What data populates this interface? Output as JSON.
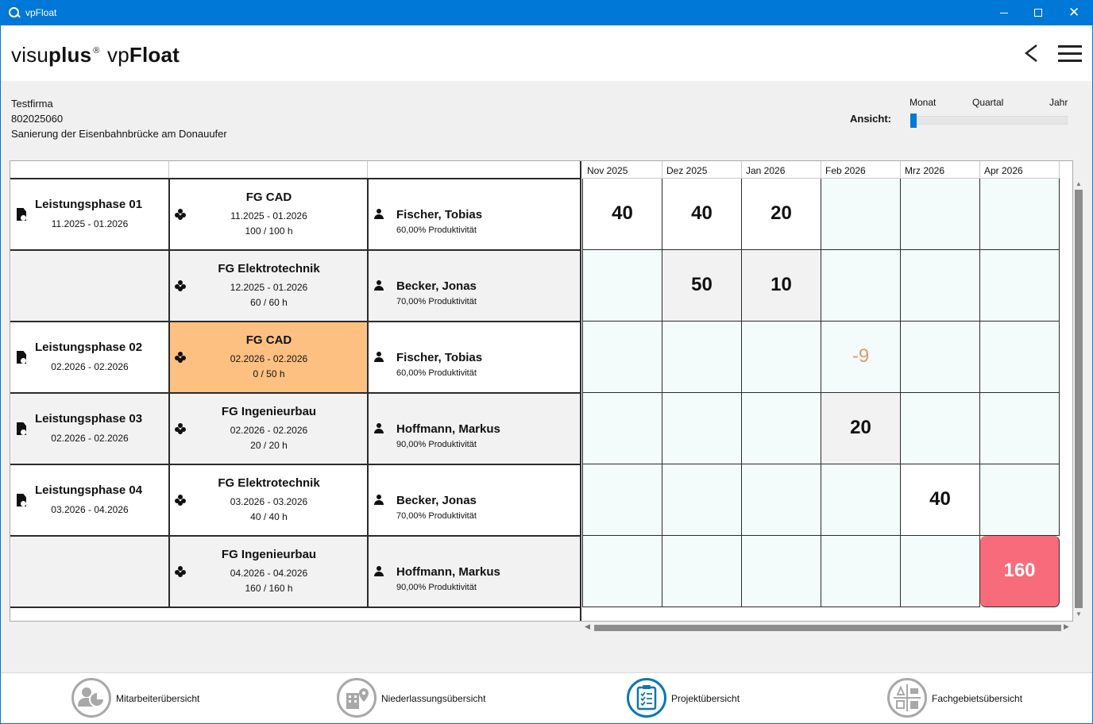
{
  "window": {
    "title": "vpFloat",
    "min_label": "—",
    "max_label": "",
    "close_label": "✕"
  },
  "header": {
    "logo_pre": "visu",
    "logo_bold": "plus",
    "logo_reg": "®",
    "logo_vp": " vp",
    "logo_float": "Float"
  },
  "project": {
    "company": "Testfirma",
    "number": "802025060",
    "name": "Sanierung der Eisenbahnbrücke am Donauufer"
  },
  "view": {
    "label": "Ansicht:",
    "options": [
      "Monat",
      "Quartal",
      "Jahr"
    ],
    "selected": "Monat"
  },
  "months": [
    "Nov 2025",
    "Dez 2025",
    "Jan 2026",
    "Feb 2026",
    "Mrz 2026",
    "Apr 2026"
  ],
  "rows": [
    {
      "phase": "Leistungsphase 01",
      "phase_dates": "11.2025 - 01.2026",
      "fg": "FG CAD",
      "fg_dates": "11.2025 - 01.2026",
      "fg_hours": "100 / 100 h",
      "person": "Fischer, Tobias",
      "productivity": "60,00% Produktivität",
      "values": [
        "40",
        "40",
        "20",
        "",
        "",
        ""
      ]
    },
    {
      "phase": "",
      "phase_dates": "",
      "fg": "FG Elektrotechnik",
      "fg_dates": "12.2025 - 01.2026",
      "fg_hours": "60 / 60 h",
      "person": "Becker, Jonas",
      "productivity": "70,00% Produktivität",
      "values": [
        "",
        "50",
        "10",
        "",
        "",
        ""
      ]
    },
    {
      "phase": "Leistungsphase 02",
      "phase_dates": "02.2026 - 02.2026",
      "fg": "FG CAD",
      "fg_dates": "02.2026 - 02.2026",
      "fg_hours": "0 / 50 h",
      "person": "Fischer, Tobias",
      "productivity": "60,00% Produktivität",
      "values": [
        "",
        "",
        "",
        "-9",
        "",
        ""
      ]
    },
    {
      "phase": "Leistungsphase 03",
      "phase_dates": "02.2026 - 02.2026",
      "fg": "FG Ingenieurbau",
      "fg_dates": "02.2026 - 02.2026",
      "fg_hours": "20 / 20 h",
      "person": "Hoffmann, Markus",
      "productivity": "90,00% Produktivität",
      "values": [
        "",
        "",
        "",
        "20",
        "",
        ""
      ]
    },
    {
      "phase": "Leistungsphase 04",
      "phase_dates": "03.2026 - 04.2026",
      "fg": "FG Elektrotechnik",
      "fg_dates": "03.2026 - 03.2026",
      "fg_hours": "40 / 40 h",
      "person": "Becker, Jonas",
      "productivity": "70,00% Produktivität",
      "values": [
        "",
        "",
        "",
        "",
        "40",
        ""
      ]
    },
    {
      "phase": "",
      "phase_dates": "",
      "fg": "FG Ingenieurbau",
      "fg_dates": "04.2026 - 04.2026",
      "fg_hours": "160 / 160 h",
      "person": "Hoffmann, Markus",
      "productivity": "90,00% Produktivität",
      "values": [
        "",
        "",
        "",
        "",
        "",
        "160"
      ]
    }
  ],
  "colors": {
    "accent": "#0078d7",
    "unplanned_fg": "#fdc081",
    "over_capacity": "#f86b7a",
    "negative_text": "#e39a6c"
  },
  "footer": {
    "items": [
      {
        "label": "Mitarbeiterübersicht",
        "icon": "employees-icon"
      },
      {
        "label": "Niederlassungsübersicht",
        "icon": "branch-icon"
      },
      {
        "label": "Projektübersicht",
        "icon": "project-clipboard-icon",
        "active": true
      },
      {
        "label": "Fachgebietsübersicht",
        "icon": "department-icon"
      }
    ]
  }
}
